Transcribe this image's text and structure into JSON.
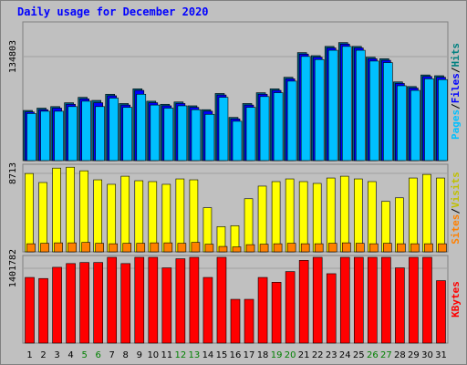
{
  "title": "Daily usage for December 2020",
  "colors": {
    "hits": "#00c0ff",
    "hits_shadow": "#006080",
    "files": "#0000ff",
    "pages": "#00c0ff",
    "visits": "#ffff00",
    "sites": "#ff8000",
    "kbytes": "#ff0000",
    "weekday_label": "#000000",
    "weekend_label": "#008000"
  },
  "chart_data": [
    {
      "type": "bar",
      "panel": "hits-files-pages",
      "y_tick_label": "134803",
      "y_tick_value": 134803,
      "legend": [
        {
          "text": "Pages",
          "color": "#00c0ff"
        },
        {
          "text": "/",
          "color": "#000000"
        },
        {
          "text": "Files",
          "color": "#0000ff"
        },
        {
          "text": "/",
          "color": "#000000"
        },
        {
          "text": "Hits",
          "color": "#008080"
        }
      ],
      "categories": [
        "1",
        "2",
        "3",
        "4",
        "5",
        "6",
        "7",
        "8",
        "9",
        "10",
        "11",
        "12",
        "13",
        "14",
        "15",
        "16",
        "17",
        "18",
        "19",
        "20",
        "21",
        "22",
        "23",
        "24",
        "25",
        "26",
        "27",
        "28",
        "29",
        "30",
        "31"
      ],
      "series": [
        {
          "name": "Hits",
          "values": [
            65000,
            68000,
            70000,
            75000,
            82000,
            78000,
            86000,
            74000,
            93000,
            77000,
            73000,
            76000,
            71000,
            66000,
            87000,
            56000,
            74000,
            88000,
            93000,
            108000,
            140000,
            136000,
            148000,
            153000,
            148000,
            134000,
            132000,
            102000,
            96000,
            111000,
            110000
          ]
        },
        {
          "name": "Files",
          "values": [
            63000,
            66000,
            68000,
            73000,
            80000,
            75000,
            84000,
            72000,
            91000,
            75000,
            71000,
            74000,
            69000,
            64000,
            85000,
            54000,
            72000,
            86000,
            91000,
            106000,
            138000,
            134000,
            146000,
            151000,
            146000,
            132000,
            130000,
            100000,
            94000,
            109000,
            108000
          ]
        },
        {
          "name": "Pages",
          "values": [
            61000,
            64000,
            64000,
            70000,
            77000,
            70000,
            81000,
            69000,
            86000,
            72000,
            68000,
            71000,
            66000,
            60000,
            82000,
            51000,
            69000,
            83000,
            88000,
            103000,
            135000,
            131000,
            143000,
            148000,
            143000,
            129000,
            127000,
            97000,
            91000,
            106000,
            105000
          ]
        }
      ]
    },
    {
      "type": "bar",
      "panel": "visits-sites",
      "y_tick_label": "8713",
      "y_tick_value": 8713,
      "legend": [
        {
          "text": "Sites",
          "color": "#ff8000"
        },
        {
          "text": "/",
          "color": "#000000"
        },
        {
          "text": "Visits",
          "color": "#c0c000"
        }
      ],
      "series": [
        {
          "name": "Visits",
          "values": [
            8700,
            7700,
            9300,
            9400,
            9000,
            8000,
            7500,
            8400,
            7900,
            7800,
            7500,
            8100,
            8000,
            4900,
            2800,
            2900,
            5900,
            7300,
            7800,
            8100,
            7800,
            7600,
            8200,
            8400,
            8100,
            7800,
            5600,
            6000,
            8200,
            8600,
            8200
          ]
        },
        {
          "name": "Sites",
          "values": [
            900,
            950,
            1000,
            1000,
            1050,
            950,
            900,
            950,
            950,
            1000,
            1000,
            950,
            1050,
            850,
            600,
            550,
            800,
            850,
            900,
            950,
            900,
            900,
            950,
            1000,
            950,
            900,
            950,
            900,
            900,
            900,
            900
          ]
        }
      ]
    },
    {
      "type": "bar",
      "panel": "kbytes",
      "y_tick_label": "1401782",
      "y_tick_value": 1401782,
      "legend": [
        {
          "text": "KBytes",
          "color": "#ff0000"
        }
      ],
      "series": [
        {
          "name": "KBytes",
          "values": [
            1230000,
            1210000,
            1420000,
            1490000,
            1510000,
            1510000,
            1800000,
            1490000,
            1900000,
            2060000,
            1410000,
            1580000,
            2130000,
            1230000,
            1750000,
            820000,
            820000,
            1230000,
            1140000,
            1340000,
            1550000,
            1620000,
            1300000,
            1800000,
            1620000,
            1640000,
            1720000,
            1410000,
            1690000,
            1620000,
            1170000
          ]
        }
      ]
    }
  ],
  "x_weekend_days": [
    5,
    6,
    12,
    13,
    19,
    20,
    26,
    27
  ]
}
